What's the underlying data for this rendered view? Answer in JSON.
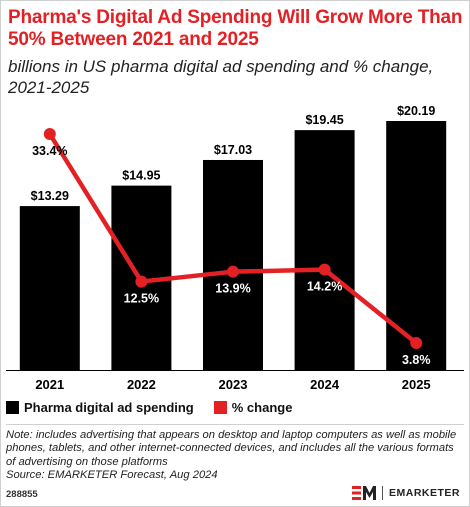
{
  "title": "Pharma's Digital Ad Spending Will Grow More Than 50% Between 2021 and 2025",
  "subtitle": "billions in US pharma digital ad spending and % change, 2021-2025",
  "colors": {
    "bar": "#000000",
    "line": "#e32125",
    "title": "#e32125"
  },
  "chart_data": {
    "type": "bar",
    "categories": [
      "2021",
      "2022",
      "2023",
      "2024",
      "2025"
    ],
    "series": [
      {
        "name": "Pharma digital ad spending",
        "type": "bar",
        "values": [
          13.29,
          14.95,
          17.03,
          19.45,
          20.19
        ],
        "labels": [
          "$13.29",
          "$14.95",
          "$17.03",
          "$19.45",
          "$20.19"
        ]
      },
      {
        "name": "% change",
        "type": "line",
        "values": [
          33.4,
          12.5,
          13.9,
          14.2,
          3.8
        ],
        "labels": [
          "33.4%",
          "12.5%",
          "13.9%",
          "14.2%",
          "3.8%"
        ]
      }
    ],
    "ylim": [
      0,
      20.19
    ],
    "ylim_secondary": [
      0,
      40
    ],
    "legend_position": "bottom-left",
    "grid": false
  },
  "note": "Note: includes advertising that appears on desktop and laptop computers as well as mobile phones, tablets, and other internet-connected devices, and includes all the various formats of advertising on those platforms",
  "source": "Source: EMARKETER Forecast, Aug 2024",
  "chart_id": "288855",
  "brand": {
    "logo_icon": "em-logo-icon",
    "name": "EMARKETER"
  }
}
